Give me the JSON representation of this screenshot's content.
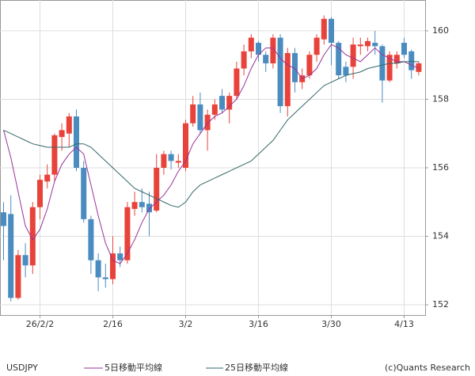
{
  "chart_data": {
    "type": "candlestick",
    "categories": [
      null,
      null,
      null,
      null,
      null,
      "26/2/2",
      null,
      null,
      null,
      null,
      null,
      null,
      null,
      null,
      null,
      "2/16",
      null,
      null,
      null,
      null,
      null,
      null,
      null,
      null,
      null,
      "3/2",
      null,
      null,
      null,
      null,
      null,
      null,
      null,
      null,
      null,
      "3/16",
      null,
      null,
      null,
      null,
      null,
      null,
      null,
      null,
      null,
      "3/30",
      null,
      null,
      null,
      null,
      null,
      null,
      null,
      null,
      null,
      "4/13",
      null,
      null
    ],
    "series": [
      {
        "name": "USDJPY",
        "up_color": "#e8433a",
        "down_color": "#4a8cc0",
        "open": [
          154.7,
          154.65,
          152.2,
          153.45,
          153.15,
          154.85,
          155.6,
          155.8,
          156.9,
          157.0,
          157.5,
          156.0,
          154.5,
          153.3,
          152.8,
          152.75,
          153.5,
          153.3,
          154.8,
          155.0,
          154.95,
          154.75,
          156.0,
          156.4,
          156.15,
          156.0,
          157.3,
          157.85,
          157.1,
          157.55,
          158.1,
          157.7,
          158.1,
          158.9,
          159.4,
          159.65,
          159.3,
          159.05,
          159.8,
          157.8,
          159.35,
          158.5,
          158.7,
          159.3,
          159.75,
          160.35,
          159.65,
          158.95,
          158.95,
          159.55,
          159.55,
          159.65,
          159.55,
          158.55,
          159.05,
          159.65,
          159.4,
          158.8
        ],
        "high": [
          155.0,
          155.2,
          153.6,
          153.8,
          155.0,
          155.8,
          156.1,
          157.0,
          157.3,
          157.6,
          157.7,
          156.2,
          154.6,
          153.5,
          153.2,
          154.0,
          153.7,
          155.0,
          155.3,
          155.4,
          155.3,
          156.4,
          156.5,
          156.5,
          156.4,
          157.4,
          158.1,
          158.2,
          157.7,
          158.0,
          158.3,
          158.2,
          159.1,
          159.6,
          159.9,
          159.7,
          159.4,
          159.9,
          159.9,
          159.5,
          159.5,
          158.9,
          159.4,
          159.9,
          160.45,
          160.4,
          159.7,
          159.1,
          159.8,
          159.8,
          159.8,
          160.0,
          159.6,
          159.4,
          159.4,
          159.8,
          159.45,
          159.1
        ],
        "low": [
          153.3,
          152.1,
          152.15,
          152.8,
          152.9,
          154.5,
          155.4,
          155.6,
          156.5,
          156.6,
          155.9,
          154.4,
          152.9,
          152.4,
          152.5,
          152.6,
          153.1,
          153.2,
          154.6,
          154.7,
          154.0,
          154.7,
          155.8,
          155.95,
          156.0,
          155.9,
          157.2,
          157.0,
          156.5,
          157.4,
          157.6,
          157.3,
          158.0,
          158.7,
          159.2,
          159.1,
          158.8,
          158.9,
          157.6,
          157.5,
          158.2,
          158.3,
          158.6,
          159.1,
          159.6,
          159.0,
          158.6,
          158.5,
          158.6,
          159.3,
          159.4,
          159.3,
          157.9,
          158.5,
          158.9,
          159.2,
          158.6,
          158.7
        ],
        "close": [
          154.3,
          152.2,
          153.45,
          153.15,
          154.85,
          155.65,
          155.8,
          156.95,
          157.1,
          157.5,
          156.0,
          154.5,
          153.3,
          152.8,
          152.75,
          153.5,
          153.3,
          154.85,
          155.0,
          154.85,
          154.7,
          156.0,
          156.4,
          156.2,
          156.2,
          157.3,
          157.85,
          157.1,
          157.55,
          157.85,
          157.7,
          158.1,
          158.9,
          159.4,
          159.8,
          159.3,
          159.05,
          159.8,
          157.8,
          159.35,
          158.5,
          158.7,
          159.3,
          159.8,
          160.35,
          159.65,
          158.7,
          158.7,
          159.6,
          159.6,
          159.7,
          159.55,
          158.55,
          159.3,
          159.3,
          159.3,
          158.85,
          159.05
        ]
      },
      {
        "name": "5日移動平均線",
        "color": "#993399",
        "values": [
          157.1,
          156.3,
          155.3,
          154.3,
          153.9,
          154.2,
          154.8,
          155.6,
          156.1,
          156.4,
          156.6,
          156.4,
          155.5,
          154.6,
          153.8,
          153.3,
          153.2,
          153.5,
          153.9,
          154.4,
          154.8,
          155.0,
          155.2,
          155.5,
          155.9,
          156.2,
          156.7,
          157.0,
          157.3,
          157.5,
          157.6,
          157.8,
          158.0,
          158.4,
          158.9,
          159.3,
          159.5,
          159.5,
          159.2,
          159.0,
          158.9,
          158.6,
          158.7,
          158.9,
          159.3,
          159.6,
          159.5,
          159.3,
          159.2,
          159.1,
          159.3,
          159.5,
          159.3,
          159.2,
          159.1,
          159.1,
          159.0,
          158.9
        ]
      },
      {
        "name": "25日移動平均線",
        "color": "#336666",
        "values": [
          157.1,
          157.0,
          156.9,
          156.8,
          156.7,
          156.65,
          156.6,
          156.6,
          156.6,
          156.6,
          156.7,
          156.7,
          156.6,
          156.4,
          156.2,
          156.0,
          155.8,
          155.6,
          155.4,
          155.3,
          155.2,
          155.1,
          155.0,
          154.9,
          154.85,
          155.0,
          155.3,
          155.5,
          155.6,
          155.7,
          155.8,
          155.9,
          156.0,
          156.1,
          156.2,
          156.4,
          156.6,
          156.8,
          157.1,
          157.4,
          157.6,
          157.8,
          158.0,
          158.2,
          158.4,
          158.5,
          158.6,
          158.7,
          158.75,
          158.8,
          158.9,
          158.95,
          159.0,
          159.05,
          159.05,
          159.1,
          159.1,
          159.1
        ]
      }
    ],
    "ylim": [
      151.7,
      160.9
    ],
    "yticks": [
      152,
      154,
      156,
      158,
      160
    ],
    "grid": true,
    "credit": "(c)Quants Research"
  }
}
